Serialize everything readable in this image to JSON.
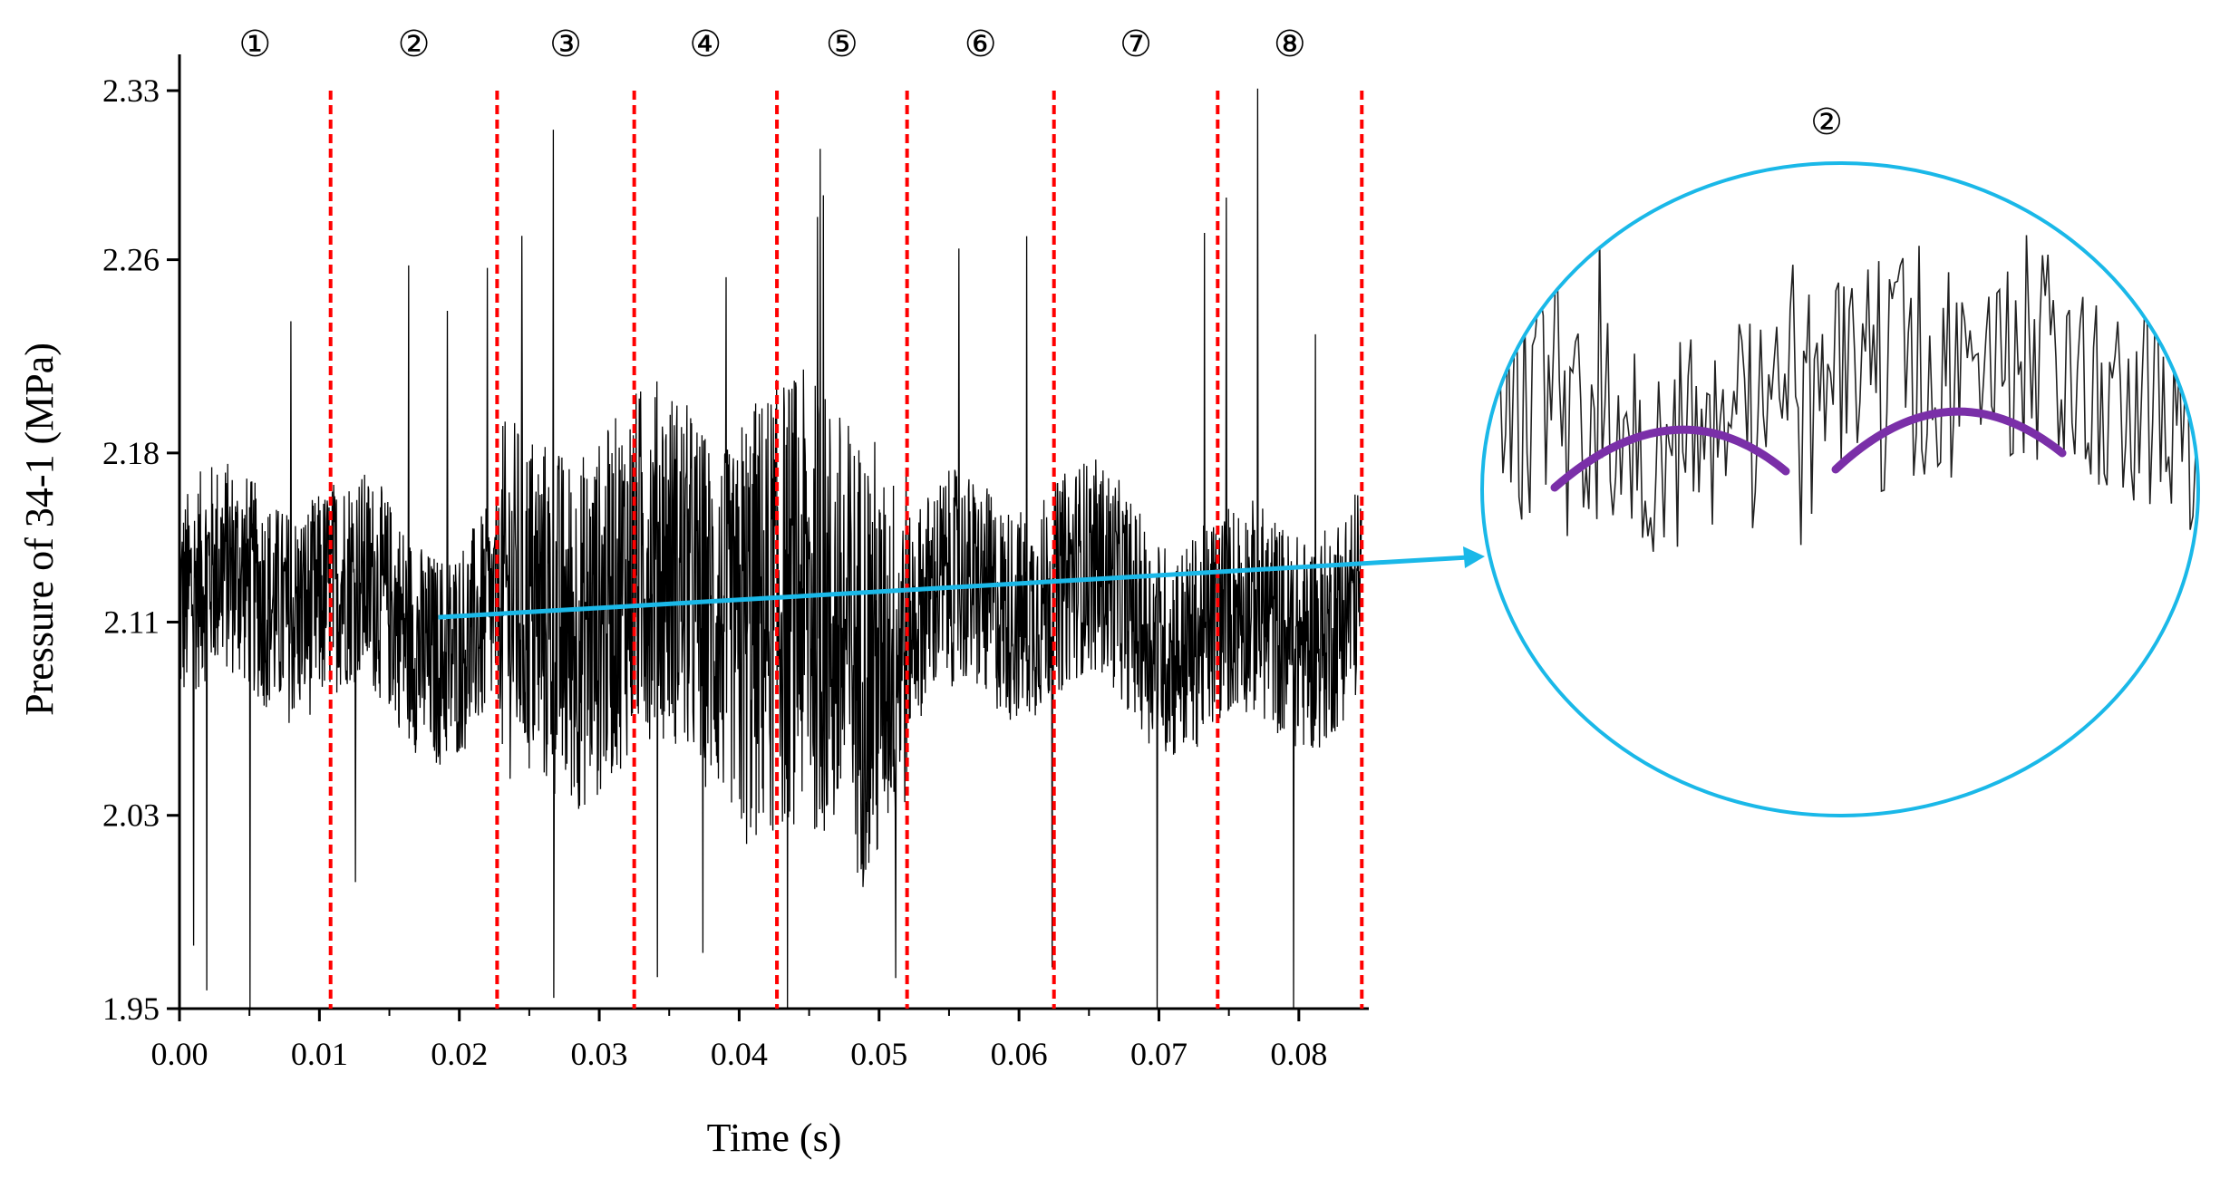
{
  "chart_data": {
    "type": "line",
    "xlabel": "Time (s)",
    "ylabel": "Pressure of 34-1 (MPa)",
    "xlim": [
      0.0,
      0.085
    ],
    "ylim": [
      1.95,
      2.345
    ],
    "x_ticks": [
      "0.00",
      "0.01",
      "0.02",
      "0.03",
      "0.04",
      "0.05",
      "0.06",
      "0.07",
      "0.08"
    ],
    "y_ticks": [
      "1.95",
      "2.03",
      "2.11",
      "2.18",
      "2.26",
      "2.33"
    ],
    "segment_boundaries_s": [
      0.0108,
      0.0227,
      0.0325,
      0.0427,
      0.052,
      0.0625,
      0.0742,
      0.0845
    ],
    "segment_labels": [
      "①",
      "②",
      "③",
      "④",
      "⑤",
      "⑥",
      "⑦",
      "⑧"
    ],
    "signal_color": "#000000",
    "boundary_color": "#ff0000",
    "trend_color": "#1ab8e8",
    "trend_line": {
      "x": [
        0.0185,
        0.0845
      ],
      "y": [
        2.112,
        2.138
      ]
    },
    "inset": {
      "label": "②",
      "description_color_arc": "#7a2fa8",
      "ring_color": "#1ab8e8"
    },
    "grid": false
  }
}
